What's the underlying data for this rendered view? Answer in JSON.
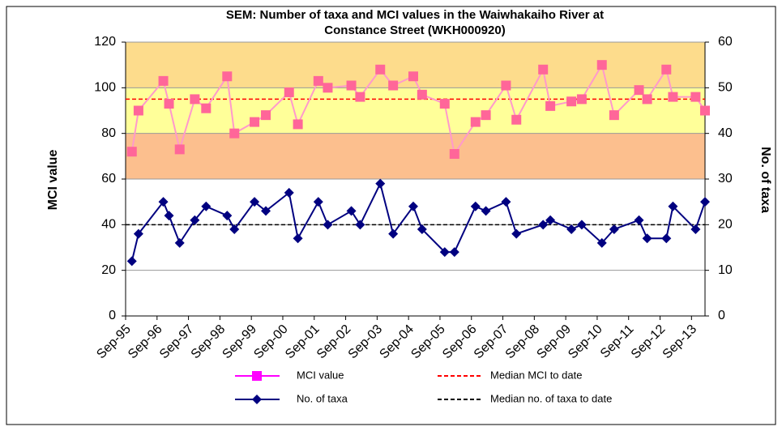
{
  "chart_data": {
    "type": "line",
    "title": [
      "SEM: Number of taxa and MCI values in the Waiwhakaiho River at",
      "Constance Street (WKH000920)"
    ],
    "y_label": "MCI value",
    "y2_label": "No. of taxa",
    "x": [
      1995.87,
      1996.08,
      1996.87,
      1997.05,
      1997.39,
      1997.87,
      1998.23,
      1998.9,
      1999.13,
      1999.77,
      2000.13,
      2000.87,
      2001.15,
      2001.8,
      2002.1,
      2002.85,
      2003.13,
      2003.77,
      2004.18,
      2004.82,
      2005.1,
      2005.82,
      2006.13,
      2006.8,
      2007.13,
      2007.77,
      2008.1,
      2008.95,
      2009.18,
      2009.85,
      2010.18,
      2010.82,
      2011.21,
      2012.0,
      2012.26,
      2012.87,
      2013.08,
      2013.8,
      2014.1
    ],
    "series": [
      {
        "name": "MCI value",
        "color": "#ff00ff",
        "line_color": "#ff99cc",
        "marker_color": "#ff6699",
        "marker": "square",
        "axis": "y",
        "values": [
          72,
          90,
          103,
          93,
          73,
          95,
          91,
          105,
          80,
          85,
          88,
          98,
          84,
          103,
          100,
          101,
          96,
          108,
          101,
          105,
          97,
          93,
          71,
          85,
          88,
          101,
          86,
          108,
          92,
          94,
          95,
          110,
          88,
          99,
          95,
          108,
          96,
          96,
          90
        ]
      },
      {
        "name": "No. of taxa",
        "color": "#000080",
        "marker": "diamond",
        "axis": "y2",
        "values": [
          12,
          18,
          25,
          22,
          16,
          21,
          24,
          22,
          19,
          25,
          23,
          27,
          17,
          25,
          20,
          23,
          20,
          29,
          18,
          24,
          19,
          14,
          14,
          24,
          23,
          25,
          18,
          20,
          21,
          19,
          20,
          16,
          19,
          21,
          17,
          17,
          24,
          19,
          25
        ]
      }
    ],
    "reference_lines": [
      {
        "name": "Median MCI to date",
        "value": 95,
        "color": "#ff0000",
        "axis": "y"
      },
      {
        "name": "Median no. of taxa to date",
        "value": 20,
        "color": "#000000",
        "axis": "y2"
      }
    ],
    "bands": [
      {
        "from": 60,
        "to": 80,
        "color": "#fcbf8e"
      },
      {
        "from": 80,
        "to": 100,
        "color": "#ffff99"
      },
      {
        "from": 100,
        "to": 120,
        "color": "#fddc8c"
      }
    ],
    "xlim": [
      1995.67,
      2014.1
    ],
    "xticks": [
      {
        "value": 1995.67,
        "label": "Sep-95"
      },
      {
        "value": 1996.67,
        "label": "Sep-96"
      },
      {
        "value": 1997.67,
        "label": "Sep-97"
      },
      {
        "value": 1998.67,
        "label": "Sep-98"
      },
      {
        "value": 1999.67,
        "label": "Sep-99"
      },
      {
        "value": 2000.67,
        "label": "Sep-00"
      },
      {
        "value": 2001.67,
        "label": "Sep-01"
      },
      {
        "value": 2002.67,
        "label": "Sep-02"
      },
      {
        "value": 2003.67,
        "label": "Sep-03"
      },
      {
        "value": 2004.67,
        "label": "Sep-04"
      },
      {
        "value": 2005.67,
        "label": "Sep-05"
      },
      {
        "value": 2006.67,
        "label": "Sep-06"
      },
      {
        "value": 2007.67,
        "label": "Sep-07"
      },
      {
        "value": 2008.67,
        "label": "Sep-08"
      },
      {
        "value": 2009.67,
        "label": "Sep-09"
      },
      {
        "value": 2010.67,
        "label": "Sep-10"
      },
      {
        "value": 2011.67,
        "label": "Sep-11"
      },
      {
        "value": 2012.67,
        "label": "Sep-12"
      },
      {
        "value": 2013.67,
        "label": "Sep-13"
      }
    ],
    "ylim": [
      0,
      120
    ],
    "yticks": [
      0,
      20,
      40,
      60,
      80,
      100,
      120
    ],
    "y2lim": [
      0,
      60
    ],
    "y2ticks": [
      0,
      10,
      20,
      30,
      40,
      50,
      60
    ],
    "grid": true
  }
}
